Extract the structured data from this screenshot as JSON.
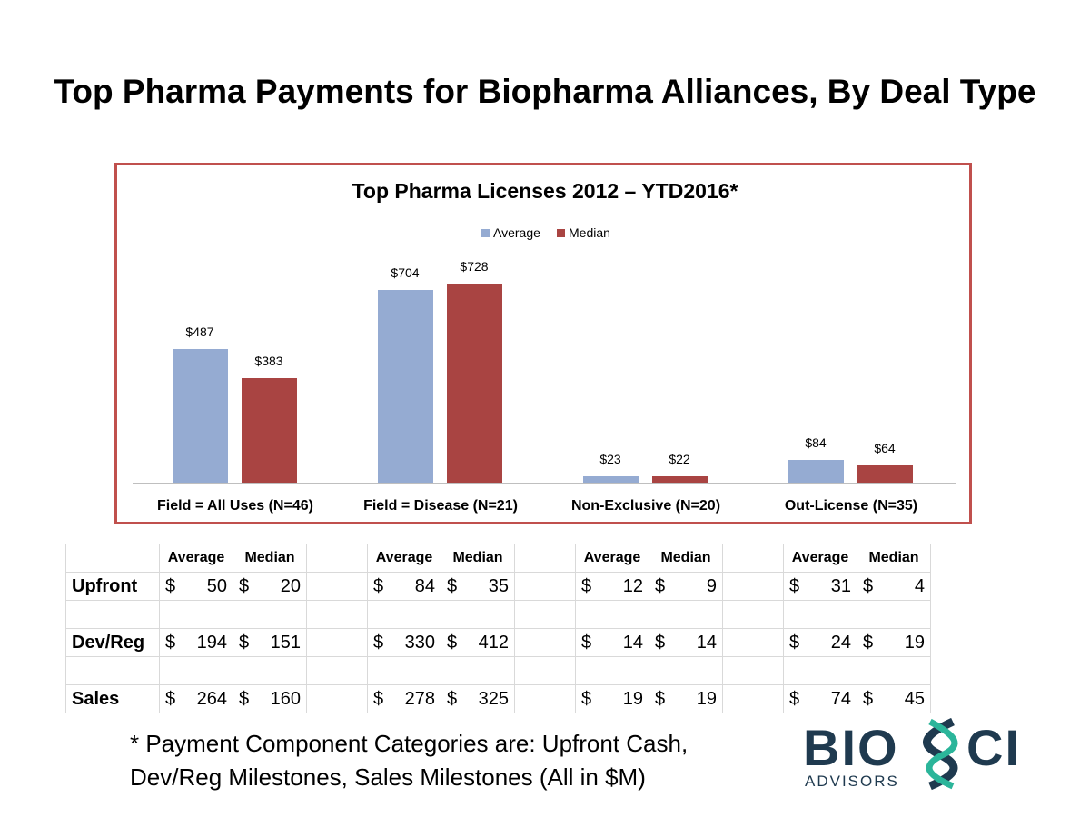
{
  "title": "Top Pharma Payments for Biopharma Alliances, By Deal Type",
  "chart_data": {
    "type": "bar",
    "title": "Top Pharma Licenses 2012 – YTD2016*",
    "categories": [
      "Field = All Uses (N=46)",
      "Field = Disease (N=21)",
      "Non-Exclusive (N=20)",
      "Out-License (N=35)"
    ],
    "series": [
      {
        "name": "Average",
        "color": "#95abd2",
        "values": [
          487,
          704,
          23,
          84
        ],
        "labels": [
          "$487",
          "$704",
          "$23",
          "$84"
        ]
      },
      {
        "name": "Median",
        "color": "#a94442",
        "values": [
          383,
          728,
          22,
          64
        ],
        "labels": [
          "$383",
          "$728",
          "$22",
          "$64"
        ]
      }
    ],
    "ylim": [
      0,
      728
    ],
    "legend": "top"
  },
  "table": {
    "headers": [
      "Average",
      "Median"
    ],
    "rows": [
      {
        "label": "Upfront",
        "values": [
          [
            "$",
            "50"
          ],
          [
            "$",
            "20"
          ],
          [
            "$",
            "84"
          ],
          [
            "$",
            "35"
          ],
          [
            "$",
            "12"
          ],
          [
            "$",
            "9"
          ],
          [
            "$",
            "31"
          ],
          [
            "$",
            "4"
          ]
        ]
      },
      {
        "label": "Dev/Reg",
        "values": [
          [
            "$",
            "194"
          ],
          [
            "$",
            "151"
          ],
          [
            "$",
            "330"
          ],
          [
            "$",
            "412"
          ],
          [
            "$",
            "14"
          ],
          [
            "$",
            "14"
          ],
          [
            "$",
            "24"
          ],
          [
            "$",
            "19"
          ]
        ]
      },
      {
        "label": "Sales",
        "values": [
          [
            "$",
            "264"
          ],
          [
            "$",
            "160"
          ],
          [
            "$",
            "278"
          ],
          [
            "$",
            "325"
          ],
          [
            "$",
            "19"
          ],
          [
            "$",
            "19"
          ],
          [
            "$",
            "74"
          ],
          [
            "$",
            "45"
          ]
        ]
      }
    ]
  },
  "footnote": [
    "* Payment Component Categories are:  Upfront Cash,",
    "Dev/Reg Milestones, Sales Milestones (All in $M)"
  ],
  "logo": {
    "main": "BIOSCI",
    "sub": "ADVISORS"
  }
}
